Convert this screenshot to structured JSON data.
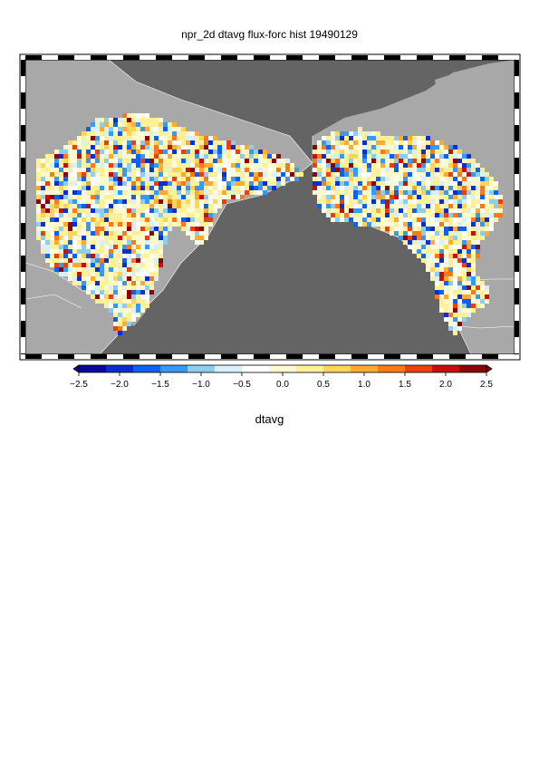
{
  "title": "npr_2d dtavg flux-forc hist 19490129",
  "colorbar": {
    "label": "dtavg",
    "ticks": [
      "-2.5",
      "-2.0",
      "-1.5",
      "-1.0",
      "-0.5",
      "0.0",
      "0.5",
      "1.0",
      "1.5",
      "2.0",
      "2.5"
    ],
    "range": [
      -2.5,
      2.5
    ],
    "colors": [
      "#08089a",
      "#0a2fd0",
      "#1060f0",
      "#3a98f0",
      "#8ccdf0",
      "#d8f0f8",
      "#ffffff",
      "#fffbd0",
      "#fff09a",
      "#ffd45a",
      "#ffaa30",
      "#f87a18",
      "#e84010",
      "#c81008",
      "#8a0505"
    ]
  },
  "map": {
    "projection": "polar stereographic (North Pacific)",
    "ocean_color": "#646464",
    "land_color": "#a8a8a8",
    "missing_color": "#ffffff"
  }
}
